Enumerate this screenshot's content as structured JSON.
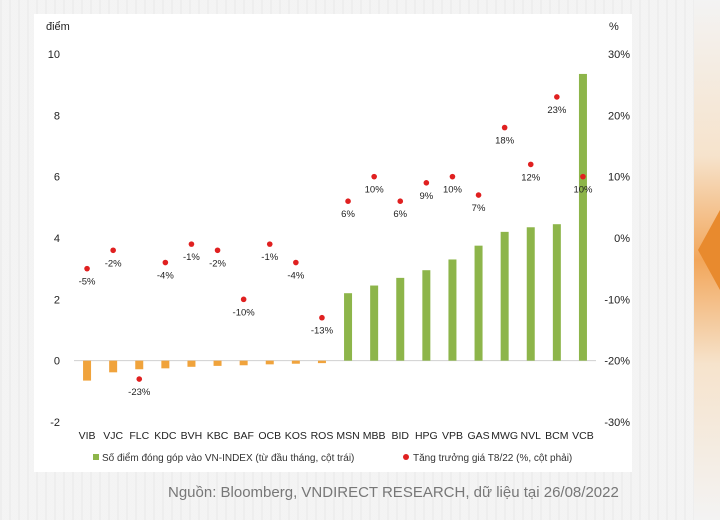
{
  "source_note": "Nguồn: Bloomberg, VNDIRECT RESEARCH, dữ liệu tại 26/08/2022",
  "colors": {
    "bar_positive": "#8db54a",
    "bar_negative": "#f0a33c",
    "dot": "#e02020",
    "accent": "#e88a2e"
  },
  "chart_data": {
    "type": "bar+scatter",
    "categories": [
      "VIB",
      "VJC",
      "FLC",
      "KDC",
      "BVH",
      "KBC",
      "BAF",
      "OCB",
      "KOS",
      "ROS",
      "MSN",
      "MBB",
      "BID",
      "HPG",
      "VPB",
      "GAS",
      "MWG",
      "NVL",
      "BCM",
      "VCB"
    ],
    "series": [
      {
        "name": "Số điểm đóng góp vào VN-INDEX (từ đầu tháng, cột trái)",
        "type": "bar",
        "axis": "left",
        "values": [
          -0.65,
          -0.38,
          -0.28,
          -0.25,
          -0.2,
          -0.17,
          -0.15,
          -0.12,
          -0.1,
          -0.08,
          2.2,
          2.45,
          2.7,
          2.95,
          3.3,
          3.75,
          4.2,
          4.35,
          4.45,
          9.35
        ]
      },
      {
        "name": "Tăng trưởng giá T8/22 (%, cột phải)",
        "type": "scatter",
        "axis": "right",
        "values": [
          -5,
          -2,
          -23,
          -4,
          -1,
          -2,
          -10,
          -1,
          -4,
          -13,
          6,
          10,
          6,
          9,
          10,
          7,
          18,
          12,
          23,
          10
        ],
        "labels": [
          "-5%",
          "-2%",
          "-23%",
          "-4%",
          "-1%",
          "-2%",
          "-10%",
          "-1%",
          "-4%",
          "-13%",
          "6%",
          "10%",
          "6%",
          "9%",
          "10%",
          "7%",
          "18%",
          "12%",
          "23%",
          "10%"
        ]
      }
    ],
    "left_axis": {
      "label": "điểm",
      "range": [
        -2,
        10
      ],
      "ticks": [
        "10",
        "8",
        "6",
        "4",
        "2",
        "0",
        "-2"
      ]
    },
    "right_axis": {
      "label": "%",
      "range": [
        -30,
        30
      ],
      "ticks": [
        "30%",
        "20%",
        "10%",
        "0%",
        "-10%",
        "-20%",
        "-30%"
      ]
    },
    "legend_position": "bottom"
  }
}
